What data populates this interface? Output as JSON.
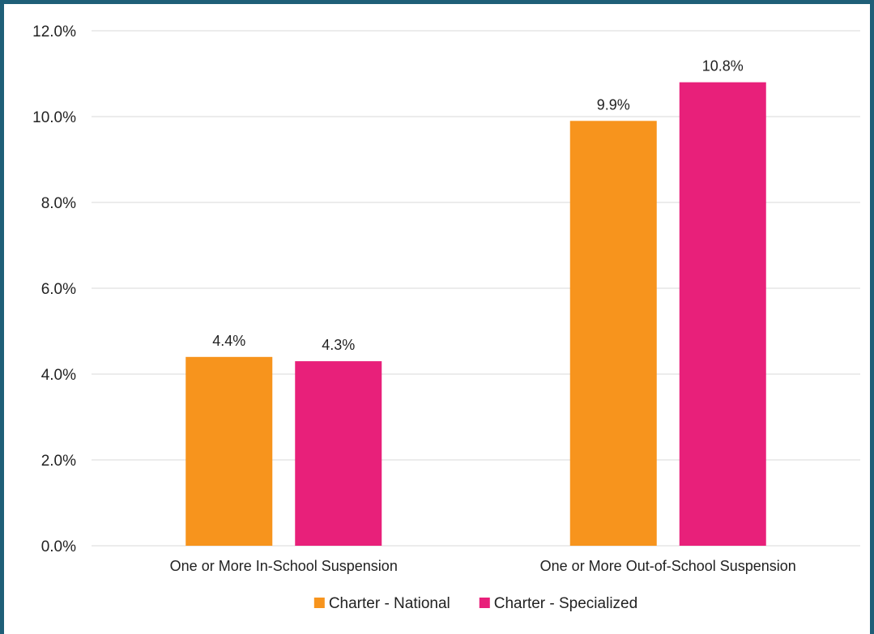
{
  "chart_data": {
    "type": "bar",
    "title": "",
    "xlabel": "",
    "ylabel": "",
    "categories": [
      "One or More In-School Suspension",
      "One or More Out-of-School Suspension"
    ],
    "series": [
      {
        "name": "Charter - National",
        "values": [
          4.4,
          9.9
        ],
        "labels": [
          "4.4%",
          "9.9%"
        ],
        "color": "#f7941d"
      },
      {
        "name": "Charter - Specialized",
        "values": [
          4.3,
          10.8
        ],
        "labels": [
          "4.3%",
          "10.8%"
        ],
        "color": "#e8207a"
      }
    ],
    "ylim": [
      0,
      12
    ],
    "y_ticks": [
      "0.0%",
      "2.0%",
      "4.0%",
      "6.0%",
      "8.0%",
      "10.0%",
      "12.0%"
    ],
    "grid": true,
    "legend_position": "bottom",
    "colors": {
      "grid": "#d9d9d9",
      "frame": "#1f5f78",
      "text": "#222222"
    }
  }
}
